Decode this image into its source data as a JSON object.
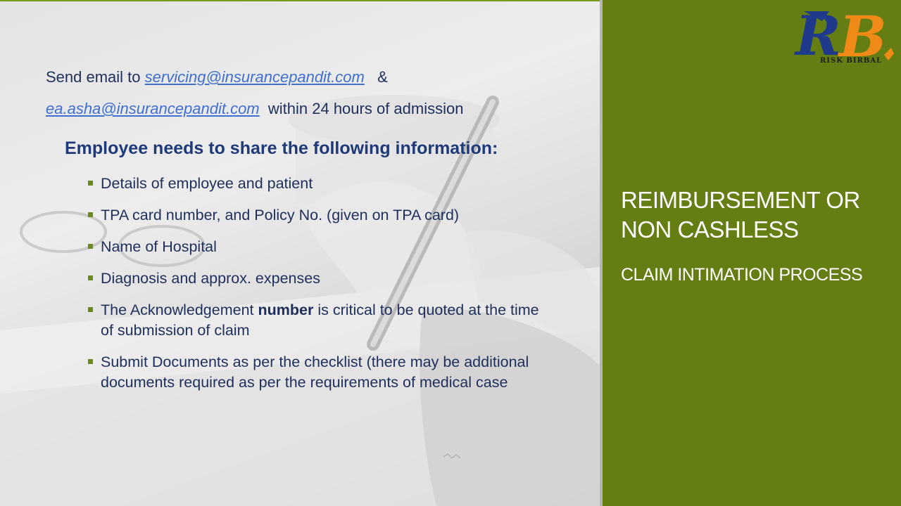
{
  "email_intro": {
    "prefix": "Send email to",
    "email1": "servicing@insurancepandit.com",
    "ampersand": "&",
    "email2": "ea.asha@insurancepandit.com",
    "suffix": "within 24 hours of admission"
  },
  "heading": "Employee needs to share the following information:",
  "bullets": [
    {
      "text": "Details of employee and patient"
    },
    {
      "text": " TPA card number, and Policy No. (given on TPA card)"
    },
    {
      "text": " Name of Hospital"
    },
    {
      "text": " Diagnosis and approx. expenses"
    },
    {
      "pre": " The Acknowledgement ",
      "bold": "number",
      "post": " is critical to be quoted at the time of   submission of claim"
    },
    {
      "text": "Submit Documents as per the checklist (there may be additional documents required as per the requirements of medical case"
    }
  ],
  "side_panel": {
    "title": "REIMBURSEMENT OR NON CASHLESS",
    "subtitle": "CLAIM INTIMATION PROCESS"
  },
  "logo": {
    "monogram": "RB",
    "tagline": "RISK BIRBAL"
  },
  "colors": {
    "green_panel": "#647e14",
    "text_navy": "#1f2f5c",
    "link_blue": "#3f6fd1",
    "bullet_green": "#6a8b1c"
  }
}
